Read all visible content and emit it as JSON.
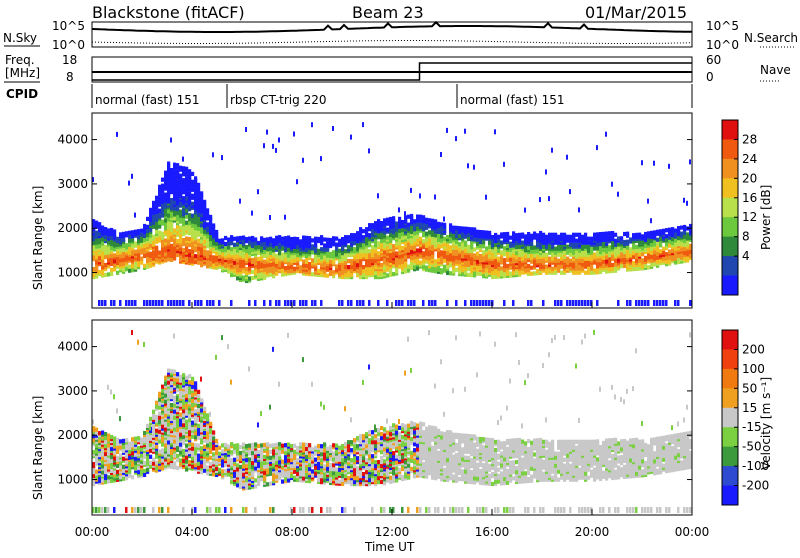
{
  "header": {
    "radar": "Blackstone (fitACF)",
    "beam": "Beam 23",
    "date": "01/Mar/2015"
  },
  "top_panels": {
    "nsky_label": "N.Sky",
    "nsearch_label": "N.Search",
    "noise_ticks": [
      "10^5",
      "10^0"
    ],
    "freq_label": "Freq.",
    "freq_unit": "[MHz]",
    "freq_ticks": [
      "18",
      "8"
    ],
    "nave_label": "Nave",
    "nave_ticks": [
      "60",
      "0"
    ],
    "cpid_label": "CPID",
    "cpid_segments": [
      {
        "name": "normal (fast) 151",
        "start_h": 0.0,
        "end_h": 5.4
      },
      {
        "name": "rbsp CT-trig 220",
        "start_h": 5.4,
        "end_h": 14.6
      },
      {
        "name": "normal (fast) 151",
        "start_h": 14.6,
        "end_h": 24.0
      }
    ]
  },
  "axes": {
    "xlabel": "Time UT",
    "xticks": [
      "00:00",
      "04:00",
      "08:00",
      "12:00",
      "16:00",
      "20:00",
      "00:00"
    ],
    "ylabel": "Slant Range [km]",
    "yticks": [
      "4000",
      "3000",
      "2000",
      "1000"
    ]
  },
  "colorbars": {
    "power": {
      "label": "Power [dB]",
      "ticks": [
        "28",
        "24",
        "20",
        "16",
        "12",
        "8",
        "4"
      ],
      "colors": [
        "#1a1aff",
        "#2046b0",
        "#2e8a3a",
        "#6cc83c",
        "#b8e04a",
        "#f0c020",
        "#f09020",
        "#f05a10",
        "#e01010"
      ]
    },
    "velocity": {
      "label": "Velocity [m s⁻¹]",
      "ticks": [
        "200",
        "100",
        "50",
        "15",
        "-15",
        "-50",
        "-100",
        "-200"
      ],
      "colors": [
        "#1a1aff",
        "#2e4ad0",
        "#3c9a3c",
        "#7ad040",
        "#c8c8c8",
        "#f0a020",
        "#f07a10",
        "#f04010",
        "#e01010"
      ]
    }
  },
  "chart_data": {
    "type": "heatmap",
    "x_unit": "hours UT",
    "xlim": [
      0,
      24
    ],
    "ylim": [
      200,
      4600
    ],
    "power_echo_band": [
      {
        "t": 0.0,
        "lower": 900,
        "upper": 2200
      },
      {
        "t": 1.0,
        "lower": 1000,
        "upper": 1900
      },
      {
        "t": 2.0,
        "lower": 1100,
        "upper": 2000
      },
      {
        "t": 3.0,
        "lower": 1300,
        "upper": 3500
      },
      {
        "t": 4.0,
        "lower": 1200,
        "upper": 3300
      },
      {
        "t": 5.0,
        "lower": 1100,
        "upper": 1800
      },
      {
        "t": 6.0,
        "lower": 800,
        "upper": 1800
      },
      {
        "t": 8.0,
        "lower": 1000,
        "upper": 1800
      },
      {
        "t": 10.0,
        "lower": 900,
        "upper": 1800
      },
      {
        "t": 11.5,
        "lower": 900,
        "upper": 2200
      },
      {
        "t": 13.0,
        "lower": 1100,
        "upper": 2300
      },
      {
        "t": 14.0,
        "lower": 1000,
        "upper": 2100
      },
      {
        "t": 16.0,
        "lower": 900,
        "upper": 1900
      },
      {
        "t": 18.0,
        "lower": 1000,
        "upper": 1900
      },
      {
        "t": 20.0,
        "lower": 1000,
        "upper": 1900
      },
      {
        "t": 22.0,
        "lower": 1100,
        "upper": 1900
      },
      {
        "t": 24.0,
        "lower": 1300,
        "upper": 2100
      }
    ],
    "power_max_db_ridge": [
      {
        "t": 0.0,
        "range": 1200
      },
      {
        "t": 3.0,
        "range": 1500
      },
      {
        "t": 6.0,
        "range": 1200
      },
      {
        "t": 10.0,
        "range": 1100
      },
      {
        "t": 13.0,
        "range": 1500
      },
      {
        "t": 16.0,
        "range": 1200
      },
      {
        "t": 20.0,
        "range": 1200
      },
      {
        "t": 24.0,
        "range": 1500
      }
    ],
    "nave_step": {
      "t": 13.1,
      "before": 1,
      "after": 60
    },
    "freq_mhz": 10.5
  }
}
